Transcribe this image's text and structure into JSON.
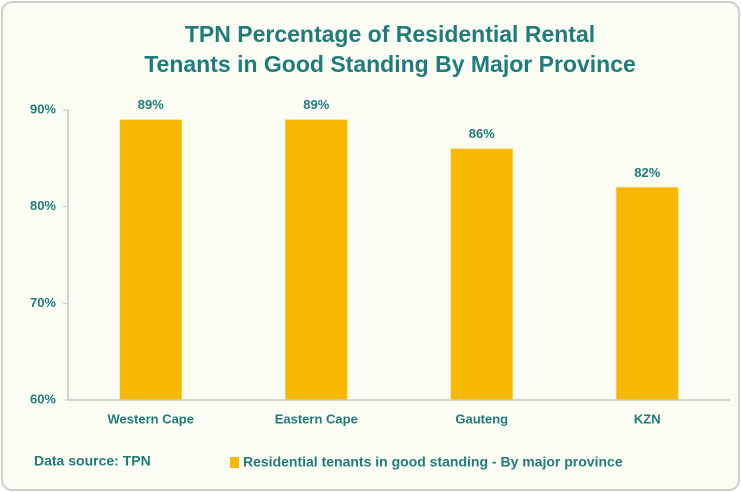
{
  "chart_data": {
    "type": "bar",
    "title": [
      "TPN Percentage of Residential Rental",
      "Tenants in Good Standing By Major Province"
    ],
    "categories": [
      "Western Cape",
      "Eastern Cape",
      "Gauteng",
      "KZN"
    ],
    "series": [
      {
        "name": "Residential tenants in good standing - By major province",
        "color": "#f9b800",
        "values": [
          89,
          89,
          86,
          82
        ],
        "value_labels": [
          "89%",
          "89%",
          "86%",
          "82%"
        ]
      }
    ],
    "ylim": [
      60,
      90
    ],
    "yticks": [
      {
        "value": 60,
        "label": "60%"
      },
      {
        "value": 70,
        "label": "70%"
      },
      {
        "value": 80,
        "label": "80%"
      },
      {
        "value": 90,
        "label": "90%"
      }
    ],
    "annotation": "Data source: TPN",
    "grid": false
  }
}
